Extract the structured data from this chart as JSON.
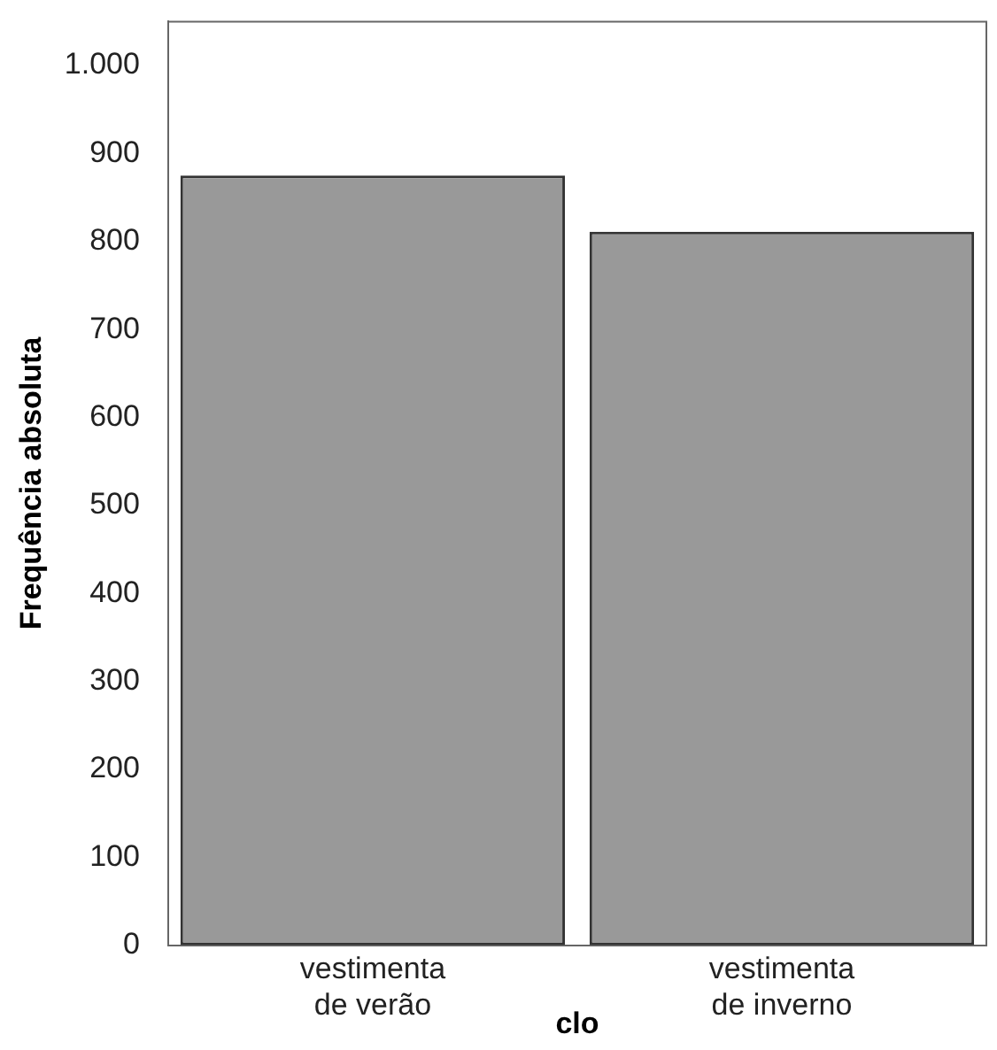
{
  "chart_data": {
    "type": "bar",
    "xlabel": "clo",
    "ylabel": "Frequência absoluta",
    "categories": [
      "vestimenta de verão",
      "vestimenta de inverno"
    ],
    "values": [
      875,
      811
    ],
    "color": "#999999",
    "ylim": [
      0,
      1050
    ],
    "yticks": [
      0,
      100,
      200,
      300,
      400,
      500,
      600,
      700,
      800,
      900,
      {
        "value": 1000,
        "label": "1.000"
      }
    ],
    "grid": false,
    "legend": false
  }
}
